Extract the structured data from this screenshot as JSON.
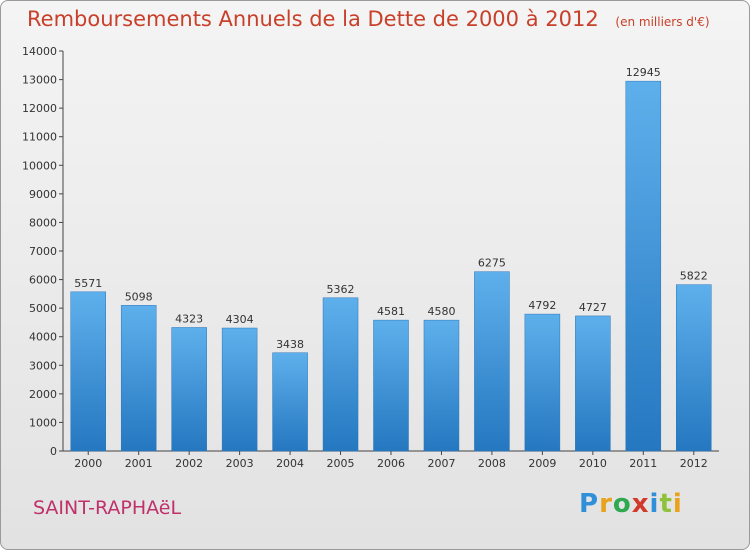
{
  "title": "Remboursements Annuels de la Dette de 2000 à 2012",
  "unit": "(en milliers d'€)",
  "city": "SAINT-RAPHAëL",
  "logo": {
    "letters": [
      "P",
      "r",
      "o",
      "x",
      "i",
      "t",
      "i"
    ],
    "colors": [
      "#2f8fd8",
      "#e8a21b",
      "#2fa84f",
      "#d13a2a",
      "#2f8fd8",
      "#8fc23a",
      "#e8a21b"
    ]
  },
  "chart_data": {
    "type": "bar",
    "title": "Remboursements Annuels de la Dette de 2000 à 2012",
    "categories": [
      "2000",
      "2001",
      "2002",
      "2003",
      "2004",
      "2005",
      "2006",
      "2007",
      "2008",
      "2009",
      "2010",
      "2011",
      "2012"
    ],
    "values": [
      5571,
      5098,
      4323,
      4304,
      3438,
      5362,
      4581,
      4580,
      6275,
      4792,
      4727,
      12945,
      5822
    ],
    "ylim": [
      0,
      14000
    ],
    "yticks": [
      0,
      1000,
      2000,
      3000,
      4000,
      5000,
      6000,
      7000,
      8000,
      9000,
      10000,
      11000,
      12000,
      13000,
      14000
    ],
    "bar_color": "#3f9be0",
    "grid": false
  }
}
